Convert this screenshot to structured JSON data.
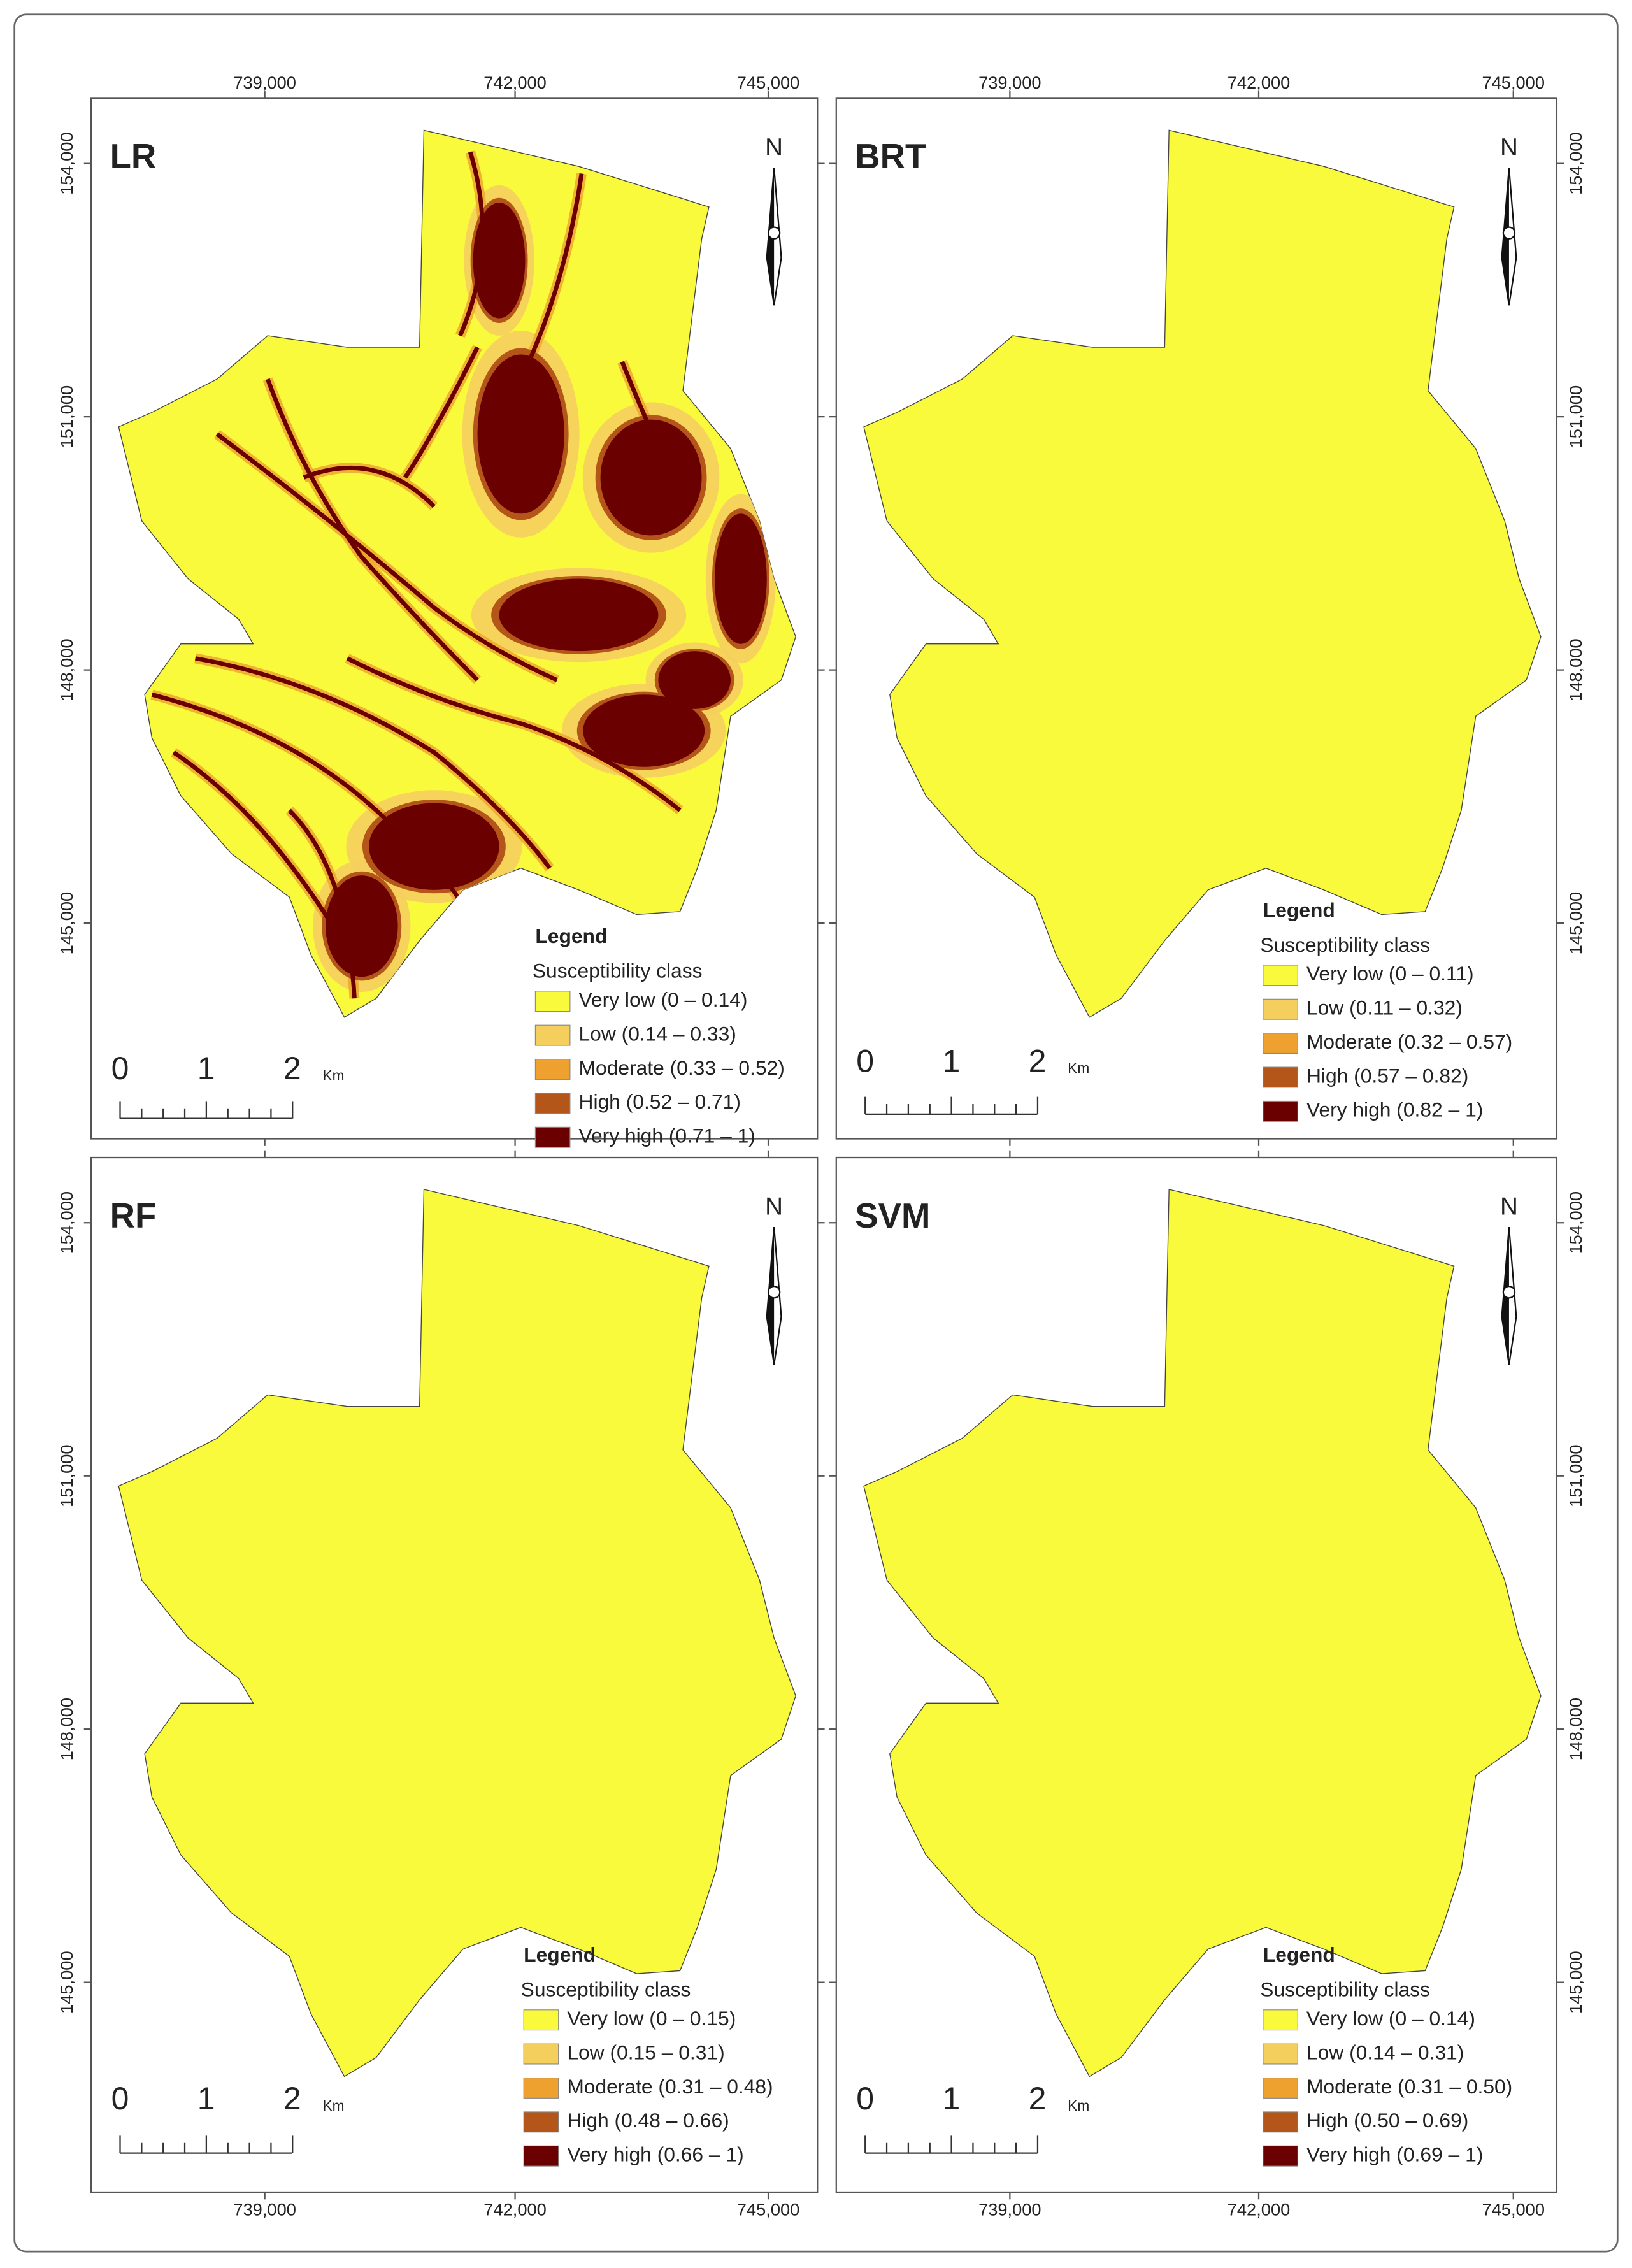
{
  "axes": {
    "x": [
      "739,000",
      "742,000",
      "745,000"
    ],
    "y": [
      "154,000",
      "151,000",
      "148,000",
      "145,000"
    ]
  },
  "panels": [
    {
      "label": "LR",
      "north": "N",
      "scale": {
        "labels": [
          "0",
          "1",
          "2"
        ],
        "unit": "Km"
      },
      "legend": {
        "title": "Legend",
        "subtitle": "Susceptibility class",
        "classes": [
          {
            "label": "Very low (0 – 0.14)",
            "color": "#fafa3c"
          },
          {
            "label": "Low (0.14 – 0.33)",
            "color": "#f5cf5e"
          },
          {
            "label": "Moderate (0.33 – 0.52)",
            "color": "#eea12e"
          },
          {
            "label": "High (0.52 – 0.71)",
            "color": "#b4561a"
          },
          {
            "label": "Very high (0.71 – 1)",
            "color": "#6a0000"
          }
        ]
      }
    },
    {
      "label": "BRT",
      "north": "N",
      "scale": {
        "labels": [
          "0",
          "1",
          "2"
        ],
        "unit": "Km"
      },
      "legend": {
        "title": "Legend",
        "subtitle": "Susceptibility class",
        "classes": [
          {
            "label": "Very low (0 – 0.11)",
            "color": "#fafa3c"
          },
          {
            "label": "Low (0.11 – 0.32)",
            "color": "#f5cf5e"
          },
          {
            "label": "Moderate (0.32 – 0.57)",
            "color": "#eea12e"
          },
          {
            "label": "High (0.57 – 0.82)",
            "color": "#b4561a"
          },
          {
            "label": "Very high (0.82 – 1)",
            "color": "#6a0000"
          }
        ]
      }
    },
    {
      "label": "RF",
      "north": "N",
      "scale": {
        "labels": [
          "0",
          "1",
          "2"
        ],
        "unit": "Km"
      },
      "legend": {
        "title": "Legend",
        "subtitle": "Susceptibility class",
        "classes": [
          {
            "label": "Very low (0 – 0.15)",
            "color": "#fafa3c"
          },
          {
            "label": "Low (0.15 – 0.31)",
            "color": "#f5cf5e"
          },
          {
            "label": "Moderate (0.31 – 0.48)",
            "color": "#eea12e"
          },
          {
            "label": "High (0.48 – 0.66)",
            "color": "#b4561a"
          },
          {
            "label": "Very high (0.66 – 1)",
            "color": "#6a0000"
          }
        ]
      }
    },
    {
      "label": "SVM",
      "north": "N",
      "scale": {
        "labels": [
          "0",
          "1",
          "2"
        ],
        "unit": "Km"
      },
      "legend": {
        "title": "Legend",
        "subtitle": "Susceptibility class",
        "classes": [
          {
            "label": "Very low (0 – 0.14)",
            "color": "#fafa3c"
          },
          {
            "label": "Low (0.14 – 0.31)",
            "color": "#f5cf5e"
          },
          {
            "label": "Moderate (0.31 – 0.50)",
            "color": "#eea12e"
          },
          {
            "label": "High (0.50 – 0.69)",
            "color": "#b4561a"
          },
          {
            "label": "Very high (0.69 – 1)",
            "color": "#6a0000"
          }
        ]
      }
    }
  ]
}
